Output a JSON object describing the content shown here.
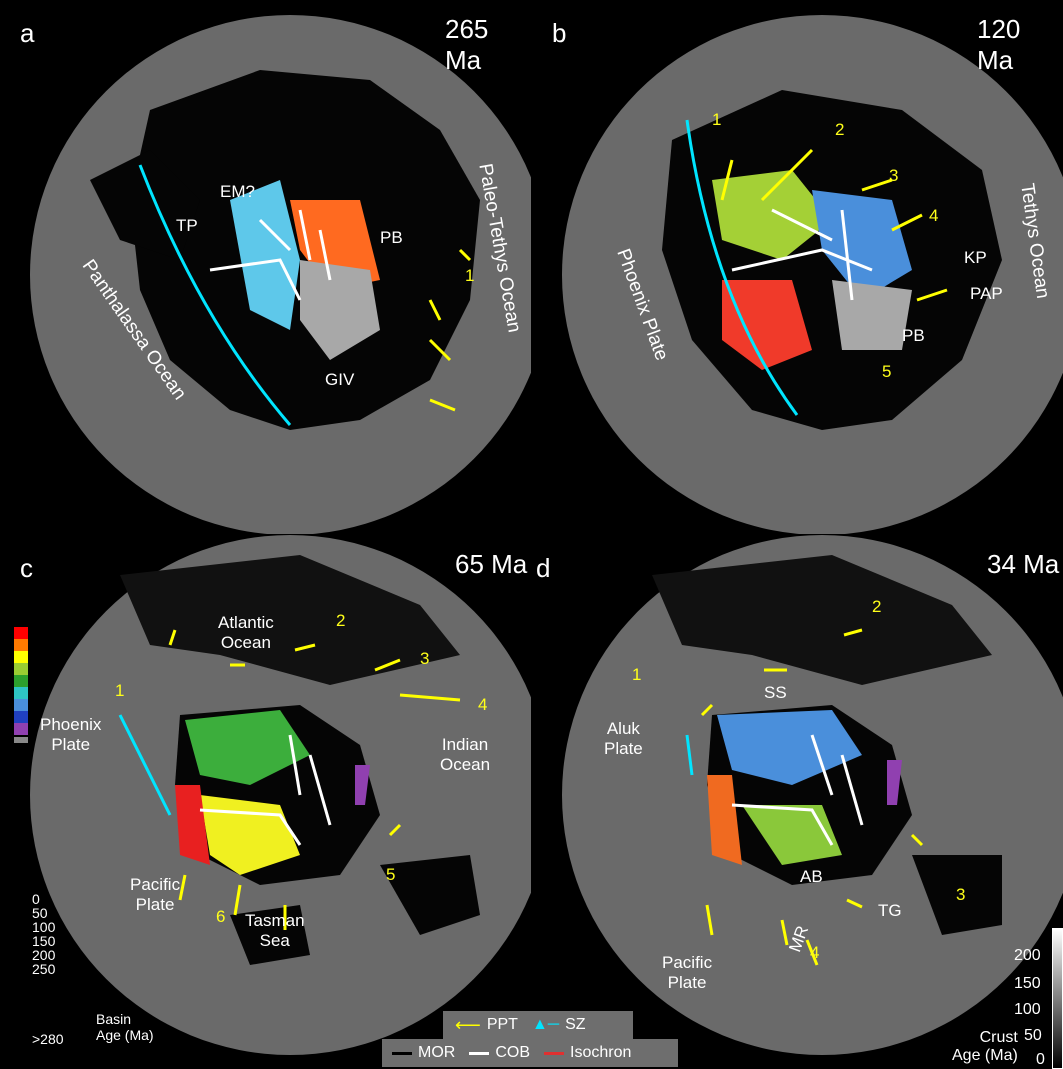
{
  "panels": [
    {
      "letter": "a",
      "age": "265 Ma",
      "labels": {
        "tp": "TP",
        "em": "EM?",
        "pb": "PB",
        "giv": "GIV",
        "panthalassa": "Panthalassa Ocean",
        "paleotethys": "Paleo-Tethys Ocean"
      },
      "numbers": [
        "1"
      ]
    },
    {
      "letter": "b",
      "age": "120 Ma",
      "labels": {
        "kp": "KP",
        "pap": "PAP",
        "pb": "PB",
        "phoenix": "Phoenix Plate",
        "tethys": "Tethys Ocean"
      },
      "numbers": [
        "1",
        "2",
        "3",
        "4",
        "5"
      ]
    },
    {
      "letter": "c",
      "age": "65 Ma",
      "labels": {
        "atlantic": "Atlantic\nOcean",
        "phoenix": "Phoenix\nPlate",
        "indian": "Indian\nOcean",
        "pacific": "Pacific\nPlate",
        "tasman": "Tasman\nSea"
      },
      "numbers": [
        "1",
        "2",
        "3",
        "4",
        "5",
        "6"
      ]
    },
    {
      "letter": "d",
      "age": "34 Ma",
      "labels": {
        "ss": "SS",
        "aluk": "Aluk\nPlate",
        "ab": "AB",
        "mr": "MR",
        "tg": "TG",
        "pacific": "Pacific\nPlate"
      },
      "numbers": [
        "1",
        "2",
        "3",
        "4"
      ]
    }
  ],
  "basin_legend": {
    "ticks": [
      "0",
      "50",
      "100",
      "150",
      "200",
      "250",
      ">280"
    ],
    "title": "Basin\nAge (Ma)",
    "colors": [
      "#ff0000",
      "#ff7a00",
      "#ffff00",
      "#9acd32",
      "#2ca02c",
      "#2ec4c4",
      "#4a8fdb",
      "#2040c0",
      "#9040b0",
      "#888888"
    ]
  },
  "crust_legend": {
    "ticks": [
      "200",
      "150",
      "100",
      "50",
      "0"
    ],
    "title": "Crust\nAge (Ma)"
  },
  "line_legend": {
    "ppt": "PPT",
    "sz": "SZ",
    "mor": "MOR",
    "cob": "COB",
    "isochron": "Isochron"
  },
  "colors": {
    "ppt": "#ffff00",
    "sz": "#00e5ff",
    "cob": "#ffffff",
    "mor": "#000000",
    "isochron": "#e03030",
    "ocean": "#6a6a6a",
    "land": "#050505"
  }
}
